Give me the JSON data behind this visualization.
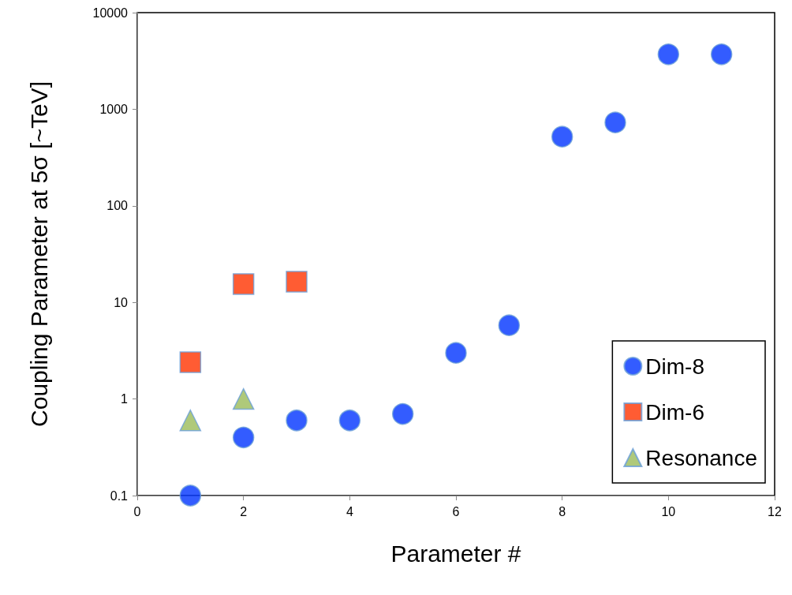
{
  "chart_data": {
    "type": "scatter",
    "xlabel": "Parameter #",
    "ylabel": "Coupling Parameter at 5σ [~TeV]",
    "log": "y",
    "grid": false,
    "legend": "bottom right",
    "xlim": [
      0,
      12
    ],
    "xticks": [
      0,
      2,
      4,
      6,
      8,
      10,
      12
    ],
    "ylim": [
      0.1,
      10000
    ],
    "yticks": [
      0.1,
      1,
      10,
      100,
      1000,
      10000
    ],
    "series": [
      {
        "name": "Dim-8",
        "color": "#0033ff",
        "marker": "circle",
        "x": [
          1,
          2,
          3,
          4,
          5,
          6,
          7,
          8,
          9,
          10,
          11
        ],
        "values": [
          0.1,
          0.4,
          0.6,
          0.6,
          0.7,
          3,
          5.8,
          520,
          730,
          3700,
          3700
        ]
      },
      {
        "name": "Dim-6",
        "color": "#ff3300",
        "marker": "square",
        "x": [
          1,
          2,
          3
        ],
        "values": [
          2.4,
          15.5,
          16.4
        ]
      },
      {
        "name": "Resonance",
        "color": "#9bbb59",
        "marker": "triangle",
        "x": [
          1,
          2
        ],
        "values": [
          0.6,
          1.0
        ]
      }
    ]
  }
}
